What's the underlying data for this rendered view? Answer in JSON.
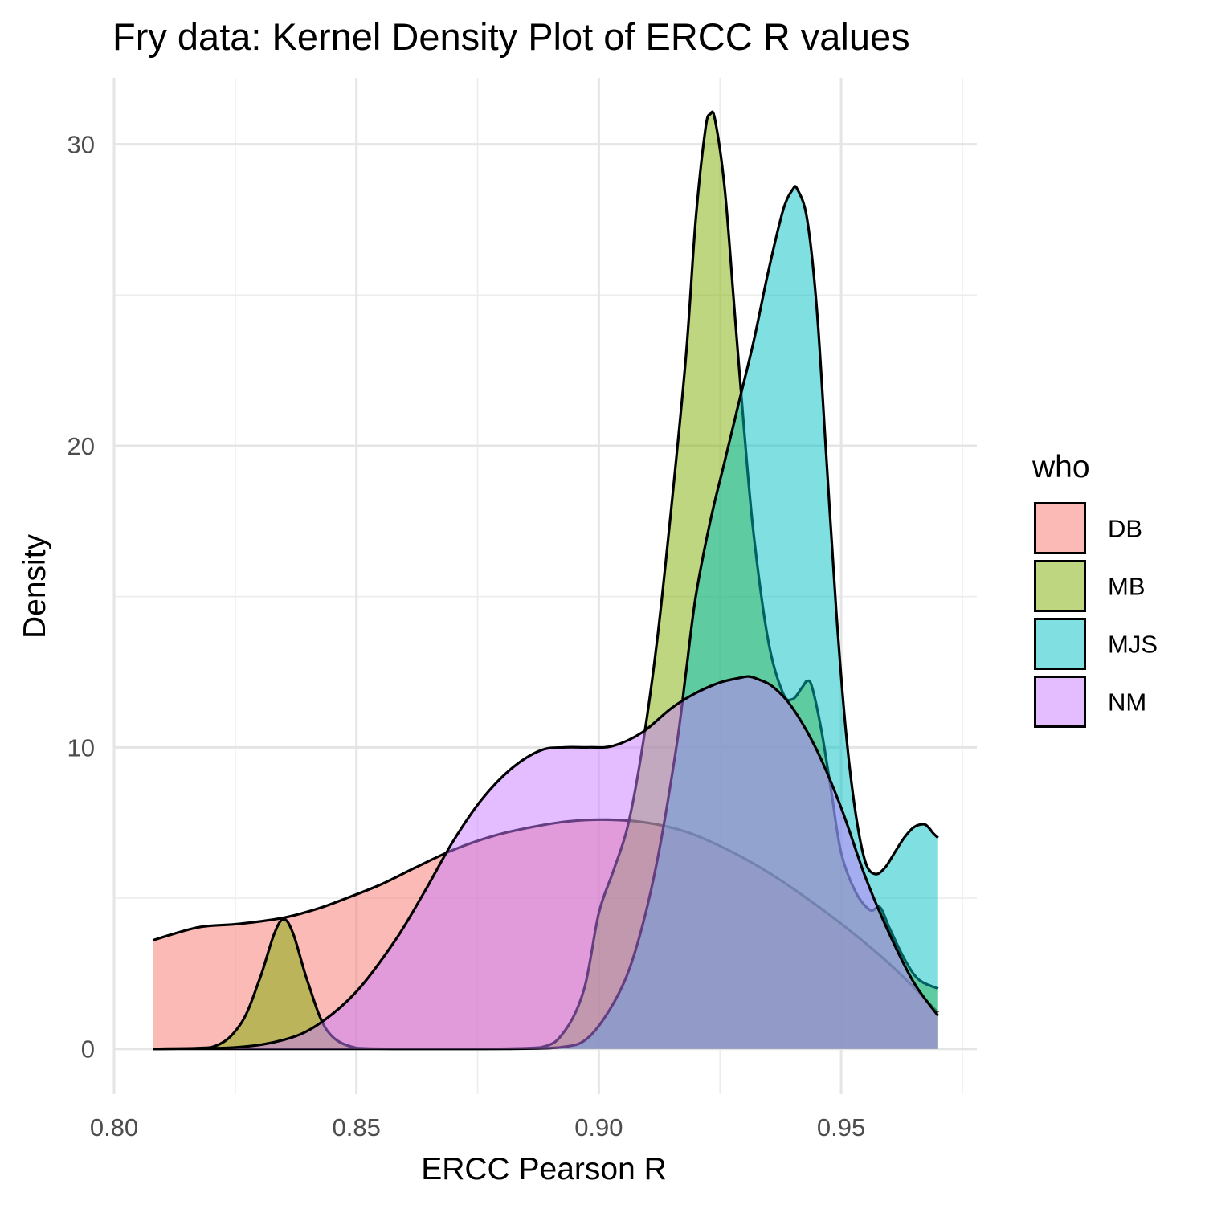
{
  "chart_data": {
    "type": "area",
    "title": "Fry data: Kernel Density Plot of ERCC R values",
    "xlabel": "ERCC Pearson R",
    "ylabel": "Density",
    "xlim": [
      0.8,
      0.978
    ],
    "ylim": [
      -1.5,
      32.2
    ],
    "x_ticks": [
      0.8,
      0.85,
      0.9,
      0.95
    ],
    "x_tick_labels": [
      "0.80",
      "0.85",
      "0.90",
      "0.95"
    ],
    "y_ticks": [
      0,
      10,
      20,
      30
    ],
    "y_tick_labels": [
      "0",
      "10",
      "20",
      "30"
    ],
    "grid": true,
    "legend": {
      "title": "who",
      "position": "right"
    },
    "series": [
      {
        "name": "DB",
        "color": "#F8766D",
        "x": [
          0.808,
          0.812,
          0.818,
          0.826,
          0.835,
          0.842,
          0.848,
          0.855,
          0.862,
          0.87,
          0.878,
          0.886,
          0.894,
          0.902,
          0.91,
          0.918,
          0.926,
          0.934,
          0.942,
          0.95,
          0.958,
          0.964,
          0.97
        ],
        "y": [
          3.6,
          3.8,
          4.05,
          4.15,
          4.35,
          4.65,
          5.0,
          5.45,
          6.0,
          6.6,
          7.05,
          7.35,
          7.55,
          7.6,
          7.5,
          7.2,
          6.65,
          5.95,
          5.1,
          4.15,
          3.1,
          2.2,
          1.2
        ]
      },
      {
        "name": "MB",
        "color": "#7CAE00",
        "x": [
          0.808,
          0.82,
          0.826,
          0.83,
          0.833,
          0.835,
          0.837,
          0.84,
          0.844,
          0.85,
          0.86,
          0.875,
          0.888,
          0.893,
          0.897,
          0.9,
          0.903,
          0.906,
          0.909,
          0.912,
          0.915,
          0.918,
          0.92,
          0.922,
          0.923,
          0.924,
          0.926,
          0.928,
          0.93,
          0.932,
          0.935,
          0.938,
          0.94,
          0.942,
          0.943,
          0.944,
          0.946,
          0.948,
          0.95,
          0.953,
          0.956,
          0.958,
          0.96,
          0.963,
          0.966,
          0.97
        ],
        "y": [
          0,
          0.05,
          0.8,
          2.3,
          3.8,
          4.3,
          3.8,
          2.2,
          0.6,
          0.03,
          0,
          0,
          0.05,
          0.6,
          2.0,
          4.5,
          5.9,
          7.4,
          10.0,
          13.5,
          18.0,
          23.0,
          27.5,
          30.5,
          31.0,
          30.8,
          28.5,
          24.5,
          20.5,
          17.0,
          13.5,
          11.8,
          11.6,
          12.0,
          12.2,
          12.0,
          10.5,
          8.5,
          6.5,
          5.2,
          4.6,
          4.7,
          4.0,
          3.0,
          2.3,
          2.0
        ]
      },
      {
        "name": "MJS",
        "color": "#00BFC4",
        "x": [
          0.808,
          0.86,
          0.88,
          0.892,
          0.898,
          0.904,
          0.908,
          0.912,
          0.916,
          0.918,
          0.92,
          0.923,
          0.926,
          0.929,
          0.932,
          0.935,
          0.938,
          0.94,
          0.941,
          0.943,
          0.945,
          0.947,
          0.949,
          0.951,
          0.953,
          0.955,
          0.957,
          0.959,
          0.961,
          0.963,
          0.965,
          0.967,
          0.968,
          0.969,
          0.97
        ],
        "y": [
          0,
          0,
          0,
          0.05,
          0.4,
          1.8,
          3.5,
          6.2,
          10.0,
          12.5,
          15.0,
          17.5,
          19.5,
          21.5,
          23.5,
          25.8,
          27.8,
          28.5,
          28.5,
          27.5,
          24.5,
          19.5,
          14.5,
          10.5,
          7.8,
          6.2,
          5.8,
          6.0,
          6.5,
          7.0,
          7.35,
          7.45,
          7.35,
          7.15,
          7.0
        ]
      },
      {
        "name": "NM",
        "color": "#C77CFF",
        "x": [
          0.808,
          0.825,
          0.835,
          0.842,
          0.85,
          0.858,
          0.864,
          0.87,
          0.876,
          0.882,
          0.888,
          0.893,
          0.898,
          0.903,
          0.909,
          0.915,
          0.92,
          0.925,
          0.929,
          0.931,
          0.933,
          0.936,
          0.94,
          0.945,
          0.95,
          0.955,
          0.96,
          0.965,
          0.97
        ],
        "y": [
          0,
          0.05,
          0.3,
          0.8,
          1.9,
          3.6,
          5.2,
          6.9,
          8.3,
          9.3,
          9.9,
          10.0,
          10.0,
          10.05,
          10.5,
          11.3,
          11.8,
          12.15,
          12.3,
          12.35,
          12.25,
          12.0,
          11.3,
          9.9,
          8.0,
          5.7,
          3.8,
          2.2,
          1.1
        ]
      }
    ]
  }
}
